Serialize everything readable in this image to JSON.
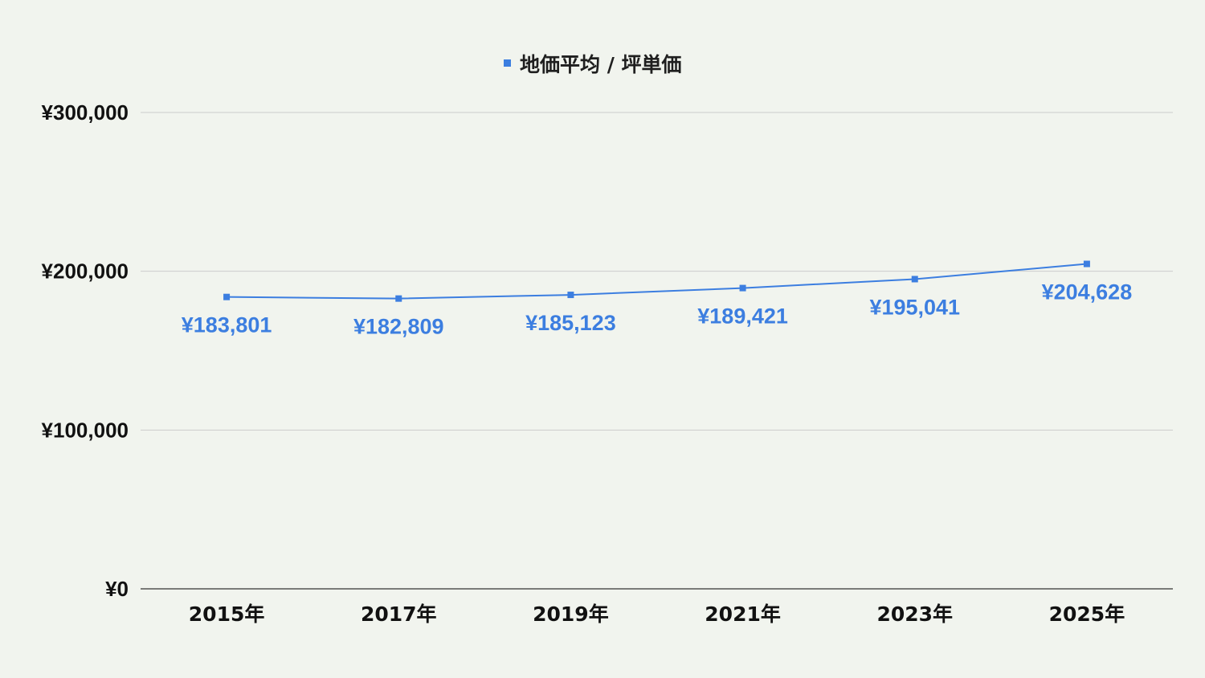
{
  "chart_data": {
    "type": "line",
    "title": "",
    "xlabel": "",
    "ylabel": "",
    "categories": [
      "2015年",
      "2017年",
      "2019年",
      "2021年",
      "2023年",
      "2025年"
    ],
    "series": [
      {
        "name": "地価平均 / 坪単価",
        "values": [
          183801,
          182809,
          185123,
          189421,
          195041,
          204628
        ],
        "labels": [
          "¥183,801",
          "¥182,809",
          "¥185,123",
          "¥189,421",
          "¥195,041",
          "¥204,628"
        ],
        "color": "#3c7ee0"
      }
    ],
    "ylim": [
      0,
      300000
    ],
    "yticks": [
      0,
      100000,
      200000,
      300000
    ],
    "ytick_labels": [
      "¥0",
      "¥100,000",
      "¥200,000",
      "¥300,000"
    ],
    "grid": true,
    "legend": "top-center",
    "background": "#f1f4ee",
    "grid_color": "#cccccc",
    "axis_color": "#333333",
    "label_color": "#3c7ee0"
  }
}
